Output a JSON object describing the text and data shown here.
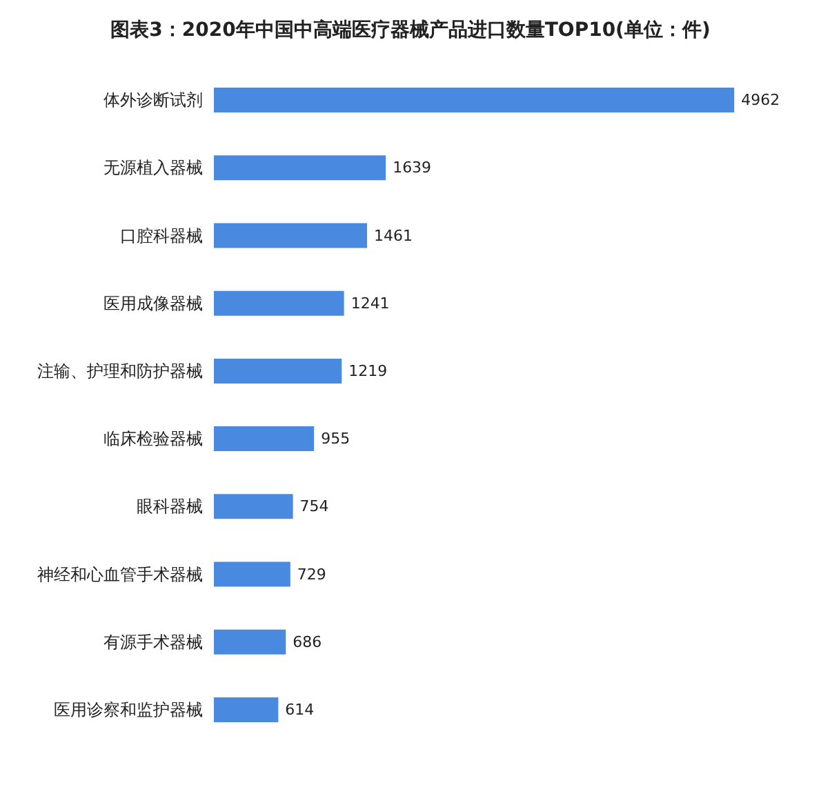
{
  "chart_data": {
    "type": "bar",
    "orientation": "horizontal",
    "title": "图表3：2020年中国中高端医疗器械产品进口数量TOP10(单位：件)",
    "categories": [
      "体外诊断试剂",
      "无源植入器械",
      "口腔科器械",
      "医用成像器械",
      "注输、护理和防护器械",
      "临床检验器械",
      "眼科器械",
      "神经和心血管手术器械",
      "有源手术器械",
      "医用诊察和监护器械"
    ],
    "values": [
      4962,
      1639,
      1461,
      1241,
      1219,
      955,
      754,
      729,
      686,
      614
    ],
    "color": "#4a89e0",
    "data_labels": true
  }
}
